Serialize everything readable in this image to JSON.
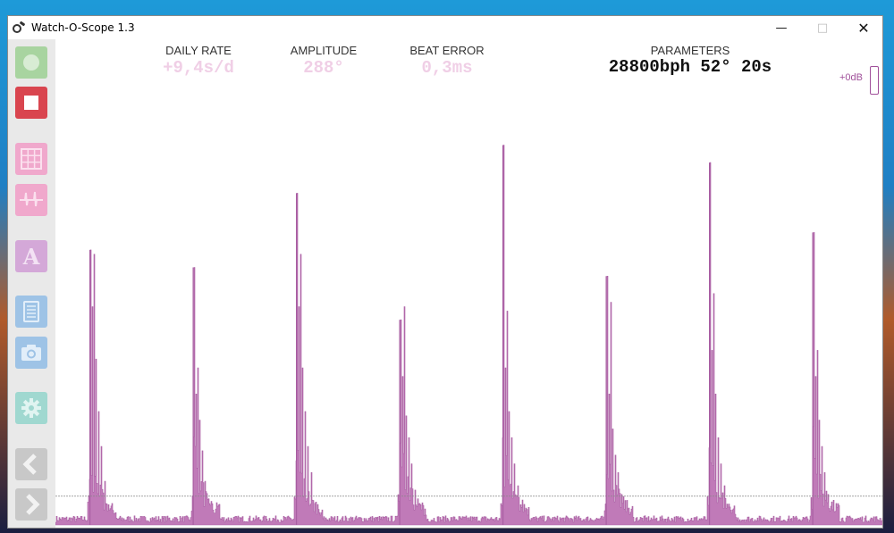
{
  "window": {
    "title": "Watch-O-Scope 1.3",
    "controls": {
      "minimize": "—",
      "maximize": "□",
      "close": "✕"
    }
  },
  "sidebar": {
    "buttons": [
      {
        "name": "record-button",
        "icon": "circle-icon",
        "color": "#a8d4a0"
      },
      {
        "name": "stop-button",
        "icon": "stop-square-icon",
        "color": "#d9454f"
      },
      {
        "name": "grid-view-button",
        "icon": "grid-icon",
        "color": "#f0a8cc"
      },
      {
        "name": "waveform-view-button",
        "icon": "waveform-icon",
        "color": "#f0a8cc"
      },
      {
        "name": "amplitude-button",
        "icon": "letter-a-icon",
        "color": "#d4a8d8"
      },
      {
        "name": "report-button",
        "icon": "document-icon",
        "color": "#9ec3e6"
      },
      {
        "name": "screenshot-button",
        "icon": "camera-icon",
        "color": "#9ec3e6"
      },
      {
        "name": "settings-button",
        "icon": "gear-icon",
        "color": "#a0d8d0"
      },
      {
        "name": "previous-button",
        "icon": "chevron-left-icon",
        "color": "#c8c8c8"
      },
      {
        "name": "next-button",
        "icon": "chevron-right-icon",
        "color": "#c8c8c8"
      }
    ],
    "amplitude_letter": "A"
  },
  "metrics": {
    "daily_rate": {
      "label": "DAILY RATE",
      "value": "+9,4s/d"
    },
    "amplitude": {
      "label": "AMPLITUDE",
      "value": "288°"
    },
    "beat_error": {
      "label": "BEAT ERROR",
      "value": "0,3ms"
    },
    "parameters": {
      "label": "PARAMETERS",
      "value": "28800bph 52° 20s"
    }
  },
  "gain": {
    "label": "+0dB"
  },
  "colors": {
    "trace": "#c07ab8",
    "trace_edge": "#a85ea2",
    "metric_value": "#f0cfe6",
    "threshold_line": "#888888"
  },
  "chart_data": {
    "type": "area",
    "description_units": "relative signal amplitude (0 = baseline, 1 = top of plot)",
    "ylim": [
      0,
      1
    ],
    "threshold_level": 0.066,
    "baseline_noise_level": 0.015,
    "ticks": [
      {
        "index": 1,
        "peaks": [
          0.63,
          0.62,
          0.5,
          0.38,
          0.26,
          0.18,
          0.1
        ]
      },
      {
        "index": 2,
        "peaks": [
          0.59,
          0.36,
          0.3,
          0.24,
          0.17,
          0.1,
          0.06
        ]
      },
      {
        "index": 3,
        "peaks": [
          0.76,
          0.62,
          0.5,
          0.36,
          0.26,
          0.18,
          0.12
        ]
      },
      {
        "index": 4,
        "peaks": [
          0.47,
          0.5,
          0.34,
          0.25,
          0.2,
          0.14,
          0.08
        ]
      },
      {
        "index": 5,
        "peaks": [
          0.87,
          0.49,
          0.36,
          0.26,
          0.2,
          0.14,
          0.09
        ]
      },
      {
        "index": 6,
        "peaks": [
          0.57,
          0.51,
          0.3,
          0.22,
          0.16,
          0.12,
          0.07
        ]
      },
      {
        "index": 7,
        "peaks": [
          0.83,
          0.53,
          0.4,
          0.3,
          0.2,
          0.14,
          0.09
        ]
      },
      {
        "index": 8,
        "peaks": [
          0.67,
          0.4,
          0.34,
          0.24,
          0.18,
          0.12,
          0.07
        ]
      }
    ]
  }
}
